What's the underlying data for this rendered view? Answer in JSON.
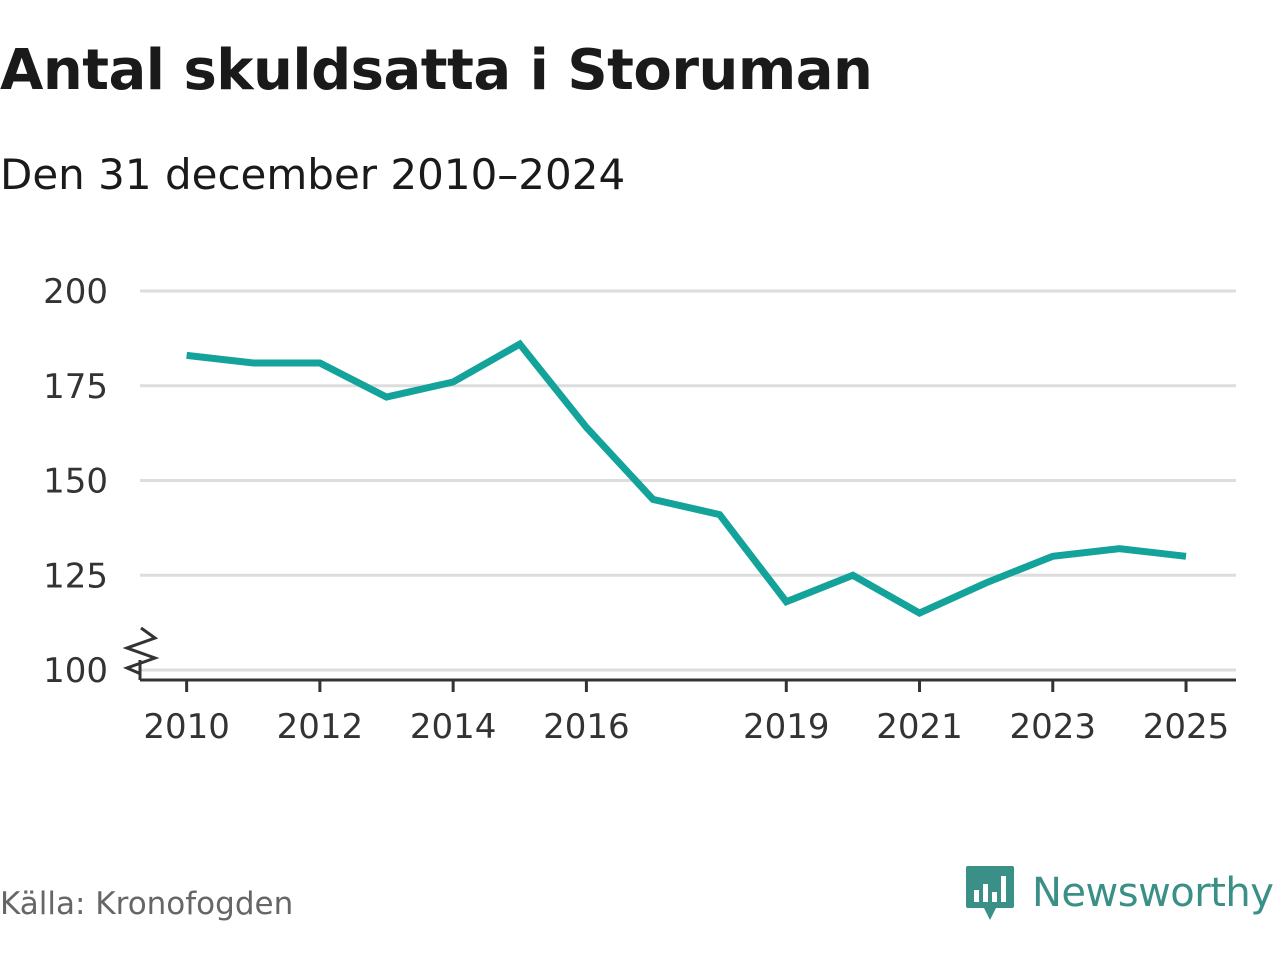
{
  "title": "Antal skuldsatta i Storuman",
  "subtitle": "Den 31 december 2010–2024",
  "source": "Källa: Kronofogden",
  "brand": {
    "name": "Newsworthy",
    "color": "#3a8f86",
    "icon": "bar-chart-speech-bubble-icon"
  },
  "chart_data": {
    "type": "line",
    "x": [
      2010,
      2011,
      2012,
      2013,
      2014,
      2015,
      2016,
      2017,
      2018,
      2019,
      2020,
      2021,
      2022,
      2023,
      2024,
      2025
    ],
    "series": [
      {
        "values": [
          183,
          181,
          181,
          172,
          176,
          186,
          164,
          145,
          141,
          118,
          125,
          115,
          123,
          130,
          132,
          130
        ],
        "color": "#13a39a"
      }
    ],
    "xticks": [
      2010,
      2012,
      2014,
      2016,
      2019,
      2021,
      2023,
      2025
    ],
    "yticks": [
      100,
      125,
      150,
      175,
      200
    ],
    "ylim": [
      100,
      200
    ],
    "xlim": [
      2009.3,
      2025.75
    ],
    "y_axis_break": true,
    "grid": "horizontal",
    "gridline_color": "#dddddd",
    "axis_color": "#333333",
    "xlabel": "",
    "ylabel": ""
  }
}
